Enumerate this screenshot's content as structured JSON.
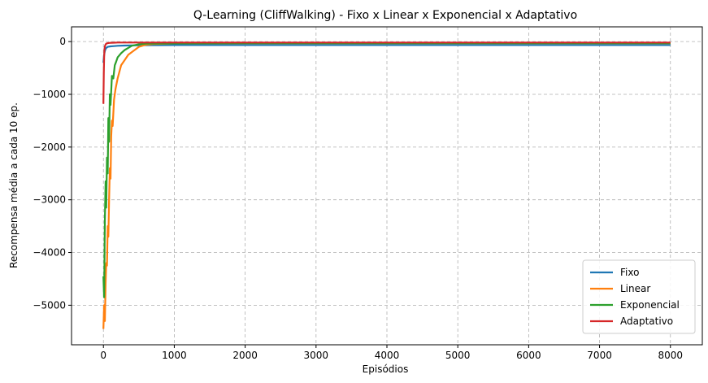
{
  "chart_data": {
    "type": "line",
    "title": "Q-Learning (CliffWalking) - Fixo x Linear x Exponencial x Adaptativo",
    "xlabel": "Episódios",
    "ylabel": "Recompensa média a cada 10 ep.",
    "xlim": [
      -450,
      8450
    ],
    "ylim": [
      -5750,
      280
    ],
    "xticks": [
      0,
      1000,
      2000,
      3000,
      4000,
      5000,
      6000,
      7000,
      8000
    ],
    "yticks": [
      0,
      -1000,
      -2000,
      -3000,
      -4000,
      -5000
    ],
    "grid": true,
    "legend_position": "lower-right",
    "series": [
      {
        "name": "Fixo",
        "color": "#1f77b4",
        "x": [
          0,
          10,
          20,
          30,
          40,
          50,
          60,
          80,
          100,
          150,
          200,
          300,
          500,
          1000,
          2000,
          3000,
          4000,
          5000,
          6000,
          7000,
          8000
        ],
        "y": [
          -400,
          -250,
          -180,
          -140,
          -120,
          -110,
          -100,
          -95,
          -90,
          -85,
          -80,
          -75,
          -70,
          -65,
          -65,
          -65,
          -65,
          -65,
          -65,
          -65,
          -65
        ]
      },
      {
        "name": "Linear",
        "color": "#ff7f0e",
        "x": [
          0,
          10,
          20,
          30,
          40,
          50,
          60,
          70,
          80,
          90,
          100,
          110,
          120,
          130,
          150,
          170,
          200,
          250,
          300,
          350,
          400,
          450,
          500,
          600,
          700,
          1000,
          2000,
          4000,
          6000,
          8000
        ],
        "y": [
          -5450,
          -5000,
          -5300,
          -4600,
          -4200,
          -4250,
          -3500,
          -3700,
          -3000,
          -2400,
          -2600,
          -1800,
          -1500,
          -1600,
          -1100,
          -900,
          -700,
          -450,
          -350,
          -250,
          -200,
          -150,
          -100,
          -60,
          -45,
          -35,
          -30,
          -30,
          -30,
          -30
        ]
      },
      {
        "name": "Exponencial",
        "color": "#2ca02c",
        "x": [
          0,
          10,
          20,
          30,
          40,
          50,
          60,
          70,
          80,
          90,
          100,
          120,
          140,
          160,
          180,
          200,
          250,
          300,
          350,
          400,
          500,
          600,
          1000,
          2000,
          4000,
          6000,
          8000
        ],
        "y": [
          -4450,
          -4850,
          -3400,
          -2650,
          -3150,
          -2200,
          -2500,
          -1450,
          -1900,
          -1000,
          -1200,
          -650,
          -700,
          -450,
          -380,
          -300,
          -220,
          -160,
          -120,
          -80,
          -50,
          -40,
          -35,
          -30,
          -30,
          -30,
          -30
        ]
      },
      {
        "name": "Adaptativo",
        "color": "#d62728",
        "x": [
          0,
          5,
          10,
          15,
          20,
          30,
          40,
          60,
          80,
          100,
          150,
          200,
          400,
          1000,
          2000,
          4000,
          6000,
          8000
        ],
        "y": [
          -1180,
          -600,
          -300,
          -150,
          -90,
          -55,
          -40,
          -30,
          -25,
          -22,
          -20,
          -18,
          -17,
          -17,
          -17,
          -17,
          -17,
          -17
        ]
      }
    ]
  }
}
